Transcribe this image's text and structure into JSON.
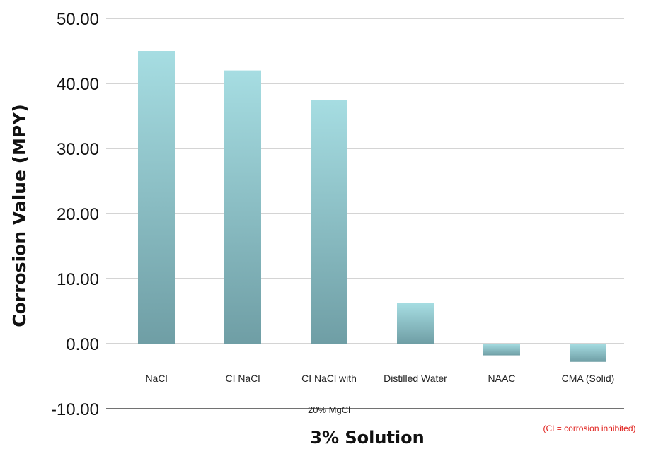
{
  "chart_data": {
    "type": "bar",
    "categories": [
      "NaCl",
      "CI NaCl",
      "CI NaCl with",
      "Distilled Water",
      "NAAC",
      "CMA (Solid)"
    ],
    "category_sublabels": [
      "",
      "",
      "20% MgCl",
      "",
      "",
      ""
    ],
    "values": [
      45.0,
      42.0,
      37.5,
      6.2,
      -1.8,
      -2.8
    ],
    "ylabel": "Corrosion Value (MPY)",
    "xlabel": "3% Solution",
    "ylim": [
      -10,
      50
    ],
    "yticks": [
      "50.00",
      "40.00",
      "30.00",
      "20.00",
      "10.00",
      "0.00",
      "-10.00"
    ],
    "note": "(CI = corrosion inhibited)",
    "grid": true,
    "bar_color_top": "#a6dde2",
    "bar_color_bottom": "#6f9ea5"
  }
}
